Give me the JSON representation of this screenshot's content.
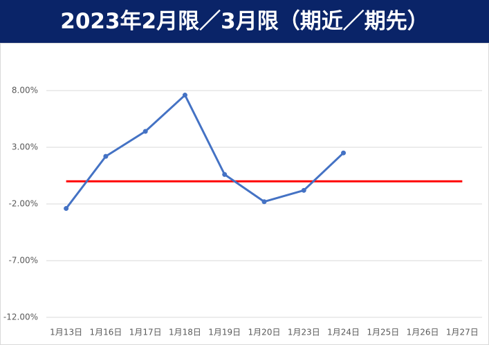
{
  "chart_data": {
    "type": "line",
    "title": "2023年2月限／3月限（期近／期先）",
    "categories": [
      "1月13日",
      "1月16日",
      "1月17日",
      "1月18日",
      "1月19日",
      "1月20日",
      "1月23日",
      "1月24日",
      "1月25日",
      "1月26日",
      "1月27日"
    ],
    "series": [
      {
        "color": "#4472c4",
        "markers": true,
        "values": [
          -2.4,
          2.2,
          4.4,
          7.6,
          0.6,
          -1.8,
          -0.8,
          2.5,
          null,
          null,
          null
        ]
      },
      {
        "color": "#ff0000",
        "markers": false,
        "values": [
          0,
          0,
          0,
          0,
          0,
          0,
          0,
          0,
          0,
          0,
          0
        ]
      }
    ],
    "ylim": [
      -12,
      12
    ],
    "yticks": [
      {
        "value": -12,
        "label": "-12.00%"
      },
      {
        "value": -7,
        "label": "-7.00%"
      },
      {
        "value": -2,
        "label": "-2.00%"
      },
      {
        "value": 3,
        "label": "3.00%"
      },
      {
        "value": 8,
        "label": "8.00%"
      }
    ],
    "grid": true
  }
}
